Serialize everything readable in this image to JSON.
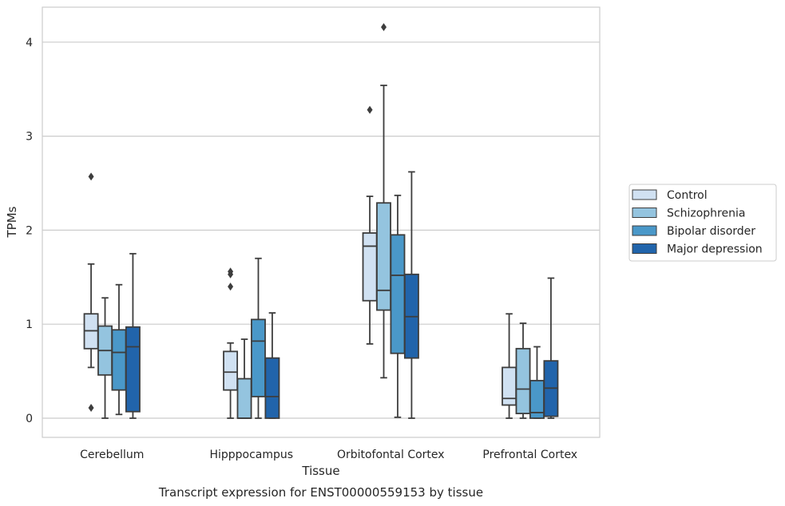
{
  "caption": "Transcript expression for ENST00000559153 by tissue",
  "chart_data": {
    "type": "box",
    "title": "",
    "xlabel": "Tissue",
    "ylabel": "TPMs",
    "ylim": [
      -0.2,
      4.38
    ],
    "yticks": [
      "0",
      "1",
      "2",
      "3",
      "4"
    ],
    "grid": true,
    "legend_position": "right",
    "categories": [
      "Cerebellum",
      "Hipppocampus",
      "Orbitofontal Cortex",
      "Prefrontal Cortex"
    ],
    "series": [
      {
        "name": "Control",
        "color": "#d0e1f2",
        "boxes": [
          {
            "whislo": 0.54,
            "q1": 0.74,
            "med": 0.93,
            "q3": 1.11,
            "whishi": 1.64,
            "fliers": [
              2.57,
              0.11
            ]
          },
          {
            "whislo": 0.0,
            "q1": 0.3,
            "med": 0.49,
            "q3": 0.71,
            "whishi": 0.8,
            "fliers": [
              1.56,
              1.53,
              1.4
            ]
          },
          {
            "whislo": 0.79,
            "q1": 1.25,
            "med": 1.83,
            "q3": 1.97,
            "whishi": 2.36,
            "fliers": [
              3.28
            ]
          },
          {
            "whislo": 0.0,
            "q1": 0.14,
            "med": 0.21,
            "q3": 0.54,
            "whishi": 1.11,
            "fliers": []
          }
        ]
      },
      {
        "name": "Schizophrenia",
        "color": "#94c4df",
        "boxes": [
          {
            "whislo": 0.0,
            "q1": 0.46,
            "med": 0.72,
            "q3": 0.98,
            "whishi": 1.28,
            "fliers": []
          },
          {
            "whislo": 0.0,
            "q1": 0.0,
            "med": 0.0,
            "q3": 0.42,
            "whishi": 0.84,
            "fliers": []
          },
          {
            "whislo": 0.43,
            "q1": 1.15,
            "med": 1.36,
            "q3": 2.29,
            "whishi": 3.54,
            "fliers": [
              4.16
            ]
          },
          {
            "whislo": 0.0,
            "q1": 0.05,
            "med": 0.31,
            "q3": 0.74,
            "whishi": 1.01,
            "fliers": []
          }
        ]
      },
      {
        "name": "Bipolar disorder",
        "color": "#4a98c9",
        "boxes": [
          {
            "whislo": 0.04,
            "q1": 0.3,
            "med": 0.7,
            "q3": 0.94,
            "whishi": 1.42,
            "fliers": []
          },
          {
            "whislo": 0.0,
            "q1": 0.23,
            "med": 0.82,
            "q3": 1.05,
            "whishi": 1.7,
            "fliers": []
          },
          {
            "whislo": 0.01,
            "q1": 0.69,
            "med": 1.52,
            "q3": 1.95,
            "whishi": 2.37,
            "fliers": []
          },
          {
            "whislo": 0.0,
            "q1": 0.0,
            "med": 0.06,
            "q3": 0.4,
            "whishi": 0.76,
            "fliers": []
          }
        ]
      },
      {
        "name": "Major depression",
        "color": "#2164ab",
        "boxes": [
          {
            "whislo": 0.0,
            "q1": 0.07,
            "med": 0.76,
            "q3": 0.97,
            "whishi": 1.75,
            "fliers": []
          },
          {
            "whislo": 0.0,
            "q1": 0.0,
            "med": 0.23,
            "q3": 0.64,
            "whishi": 1.12,
            "fliers": []
          },
          {
            "whislo": 0.0,
            "q1": 0.64,
            "med": 1.08,
            "q3": 1.53,
            "whishi": 2.62,
            "fliers": []
          },
          {
            "whislo": 0.0,
            "q1": 0.02,
            "med": 0.32,
            "q3": 0.61,
            "whishi": 1.49,
            "fliers": []
          }
        ]
      }
    ]
  }
}
